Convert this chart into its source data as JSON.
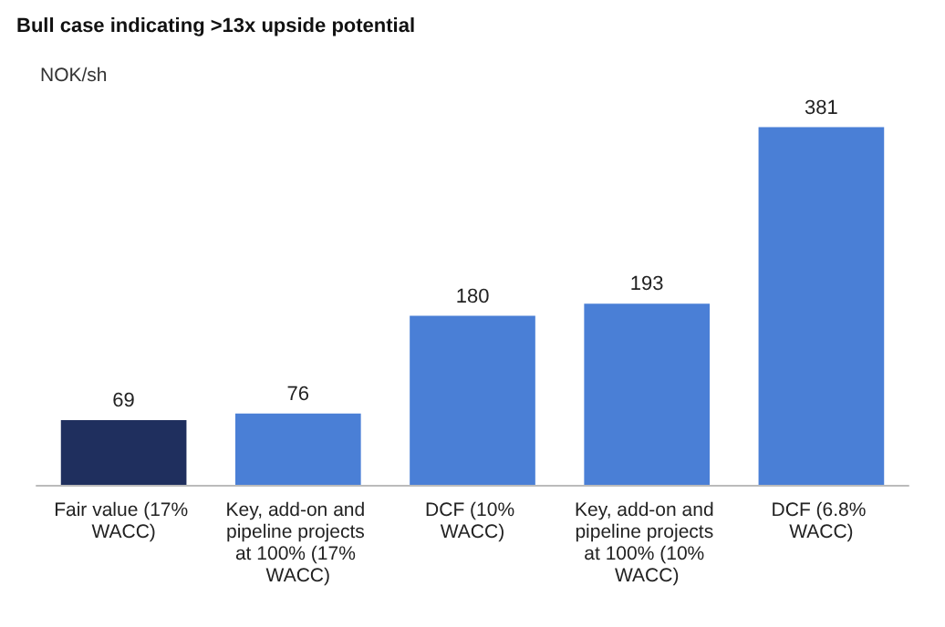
{
  "chart_data": {
    "type": "bar",
    "title": "Bull case indicating >13x upside potential",
    "ylabel": "NOK/sh",
    "categories": [
      "Fair value (17% WACC)",
      "Key, add-on and pipeline projects at 100% (17% WACC)",
      "DCF (10% WACC)",
      "Key, add-on and pipeline projects at 100% (10% WACC)",
      "DCF (6.8% WACC)"
    ],
    "values": [
      69,
      76,
      180,
      193,
      381
    ],
    "colors": [
      "#1f2f5e",
      "#4a7fd6",
      "#4a7fd6",
      "#4a7fd6",
      "#4a7fd6"
    ],
    "data_labels": true
  }
}
